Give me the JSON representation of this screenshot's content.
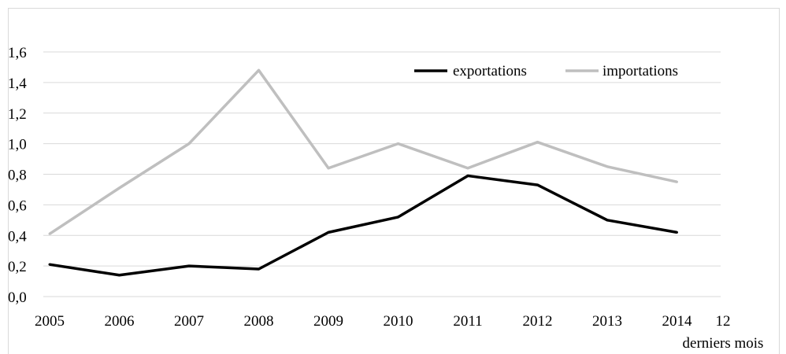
{
  "chart_data": {
    "type": "line",
    "categories": [
      "2005",
      "2006",
      "2007",
      "2008",
      "2009",
      "2010",
      "2011",
      "2012",
      "2013",
      "2014",
      "12"
    ],
    "category_sublabels": {
      "12": "derniers mois"
    },
    "y_ticks": [
      "0,0",
      "0,2",
      "0,4",
      "0,6",
      "0,8",
      "1,0",
      "1,2",
      "1,4",
      "1,6"
    ],
    "ylim": [
      0,
      1.6
    ],
    "grid": true,
    "legend_placement": "top-right",
    "series": [
      {
        "name": "exportations",
        "color": "#000000",
        "values": [
          0.21,
          0.14,
          0.2,
          0.18,
          0.42,
          0.52,
          0.79,
          0.73,
          0.5,
          0.42,
          null
        ]
      },
      {
        "name": "importations",
        "color": "#bfbfbf",
        "values": [
          0.41,
          0.71,
          1.0,
          1.48,
          0.84,
          1.0,
          0.84,
          1.01,
          0.85,
          0.75,
          null
        ]
      }
    ]
  }
}
